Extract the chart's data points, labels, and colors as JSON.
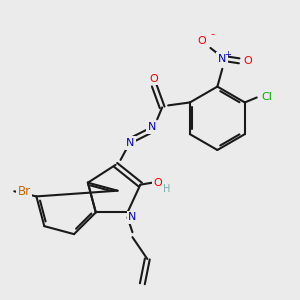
{
  "background_color": "#ebebeb",
  "bond_color": "#1a1a1a",
  "atom_colors": {
    "O": "#ff0000",
    "N": "#0000cc",
    "Br": "#cc6600",
    "Cl": "#00aa00",
    "H": "#7aabab",
    "C": "#1a1a1a"
  },
  "figsize": [
    3.0,
    3.0
  ],
  "dpi": 100
}
